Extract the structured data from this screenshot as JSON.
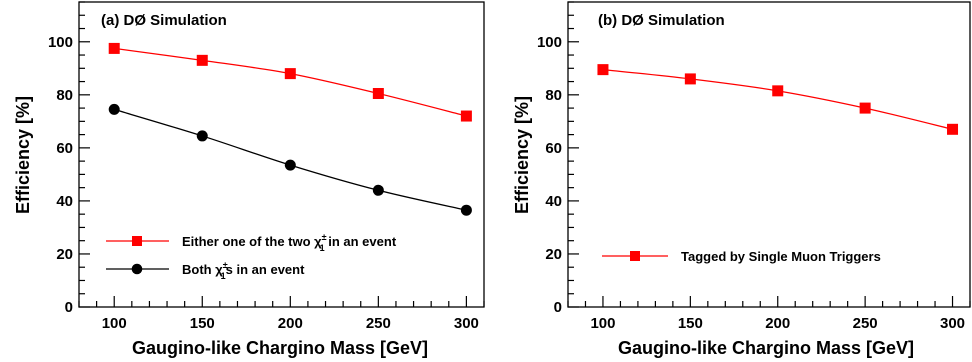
{
  "chart_data": [
    {
      "type": "line",
      "annotation": "(a) DØ Simulation",
      "xlabel": "Gaugino-like Chargino Mass [GeV]",
      "ylabel": "Efficiency [%]",
      "x": [
        100,
        150,
        200,
        250,
        300
      ],
      "xlim": [
        80,
        310
      ],
      "ylim": [
        0,
        115
      ],
      "xticks": [
        "100",
        "150",
        "200",
        "250",
        "300"
      ],
      "yticks": [
        "0",
        "20",
        "40",
        "60",
        "80",
        "100"
      ],
      "grid": false,
      "legend_position": "bottom-center",
      "series": [
        {
          "name": "Either one of the two χ₁± in an event",
          "legend_main": "Either one of the two χ",
          "legend_sup": "±",
          "legend_sub": "1",
          "legend_tail": " in an event",
          "color": "#ff0000",
          "line_color": "#ff0000",
          "marker": "square",
          "values": [
            97.5,
            93,
            88,
            80.5,
            72
          ]
        },
        {
          "name": "Both χ₁±s in an event",
          "legend_main": "Both χ",
          "legend_sup": "±",
          "legend_sub": "1",
          "legend_tail": "s in an event",
          "color": "#000000",
          "line_color": "#000000",
          "marker": "circle",
          "values": [
            74.5,
            64.5,
            53.5,
            44,
            36.5
          ]
        }
      ]
    },
    {
      "type": "line",
      "annotation": "(b) DØ Simulation",
      "xlabel": "Gaugino-like Chargino Mass [GeV]",
      "ylabel": "Efficiency [%]",
      "x": [
        100,
        150,
        200,
        250,
        300
      ],
      "xlim": [
        80,
        310
      ],
      "ylim": [
        0,
        115
      ],
      "xticks": [
        "100",
        "150",
        "200",
        "250",
        "300"
      ],
      "yticks": [
        "0",
        "20",
        "40",
        "60",
        "80",
        "100"
      ],
      "grid": false,
      "legend_position": "bottom-center",
      "series": [
        {
          "name": "Tagged by Single Muon Triggers",
          "legend_main": "Tagged by Single Muon Triggers",
          "legend_sup": "",
          "legend_sub": "",
          "legend_tail": "",
          "color": "#ff0000",
          "line_color": "#ff0000",
          "marker": "square",
          "values": [
            89.5,
            86,
            81.5,
            75,
            67
          ]
        }
      ]
    }
  ]
}
